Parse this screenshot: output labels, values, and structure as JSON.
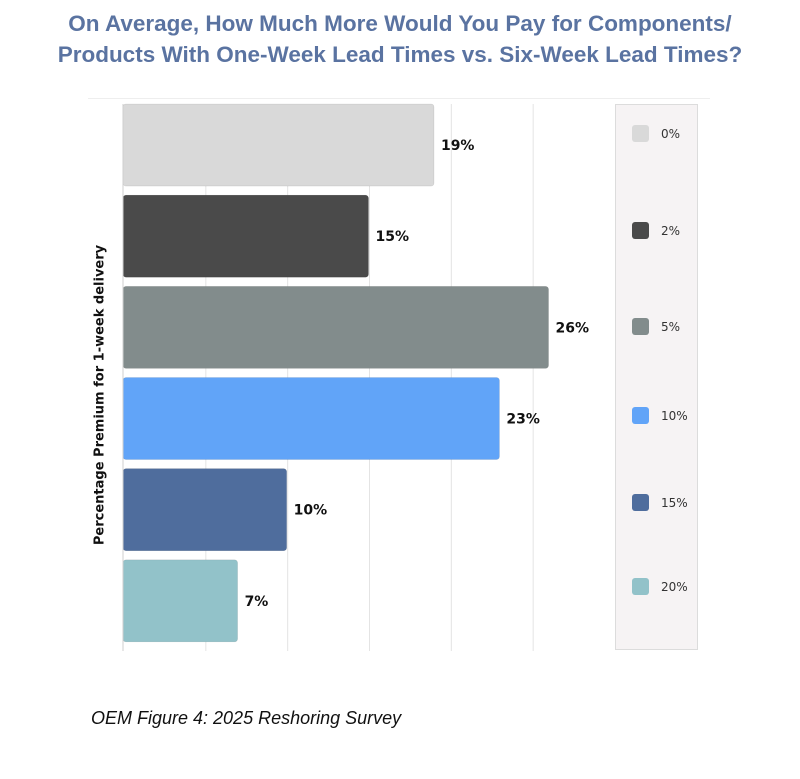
{
  "header": {
    "title_line1": "On Average, How Much More Would You Pay for Components/",
    "title_line2": "Products With One-Week Lead Times vs. Six-Week Lead Times?"
  },
  "caption": "OEM Figure 4: 2025 Reshoring Survey",
  "chart_data": {
    "type": "bar",
    "orientation": "horizontal",
    "title": "On Average, How Much More Would You Pay for Components/ Products With One-Week Lead Times vs. Six-Week Lead Times?",
    "ylabel": "Percentage Premium for 1-week delivery",
    "xlabel": "",
    "categories": [
      "0%",
      "2%",
      "5%",
      "10%",
      "15%",
      "20%"
    ],
    "values": [
      19,
      15,
      26,
      23,
      10,
      7
    ],
    "value_labels": [
      "19%",
      "15%",
      "26%",
      "23%",
      "10%",
      "7%"
    ],
    "colors": [
      "#d9d9d9",
      "#4a4a4a",
      "#828c8c",
      "#61a4f8",
      "#4f6d9d",
      "#92c2c9"
    ],
    "xlim": [
      0,
      30
    ],
    "grid": true,
    "legend_position": "right"
  }
}
